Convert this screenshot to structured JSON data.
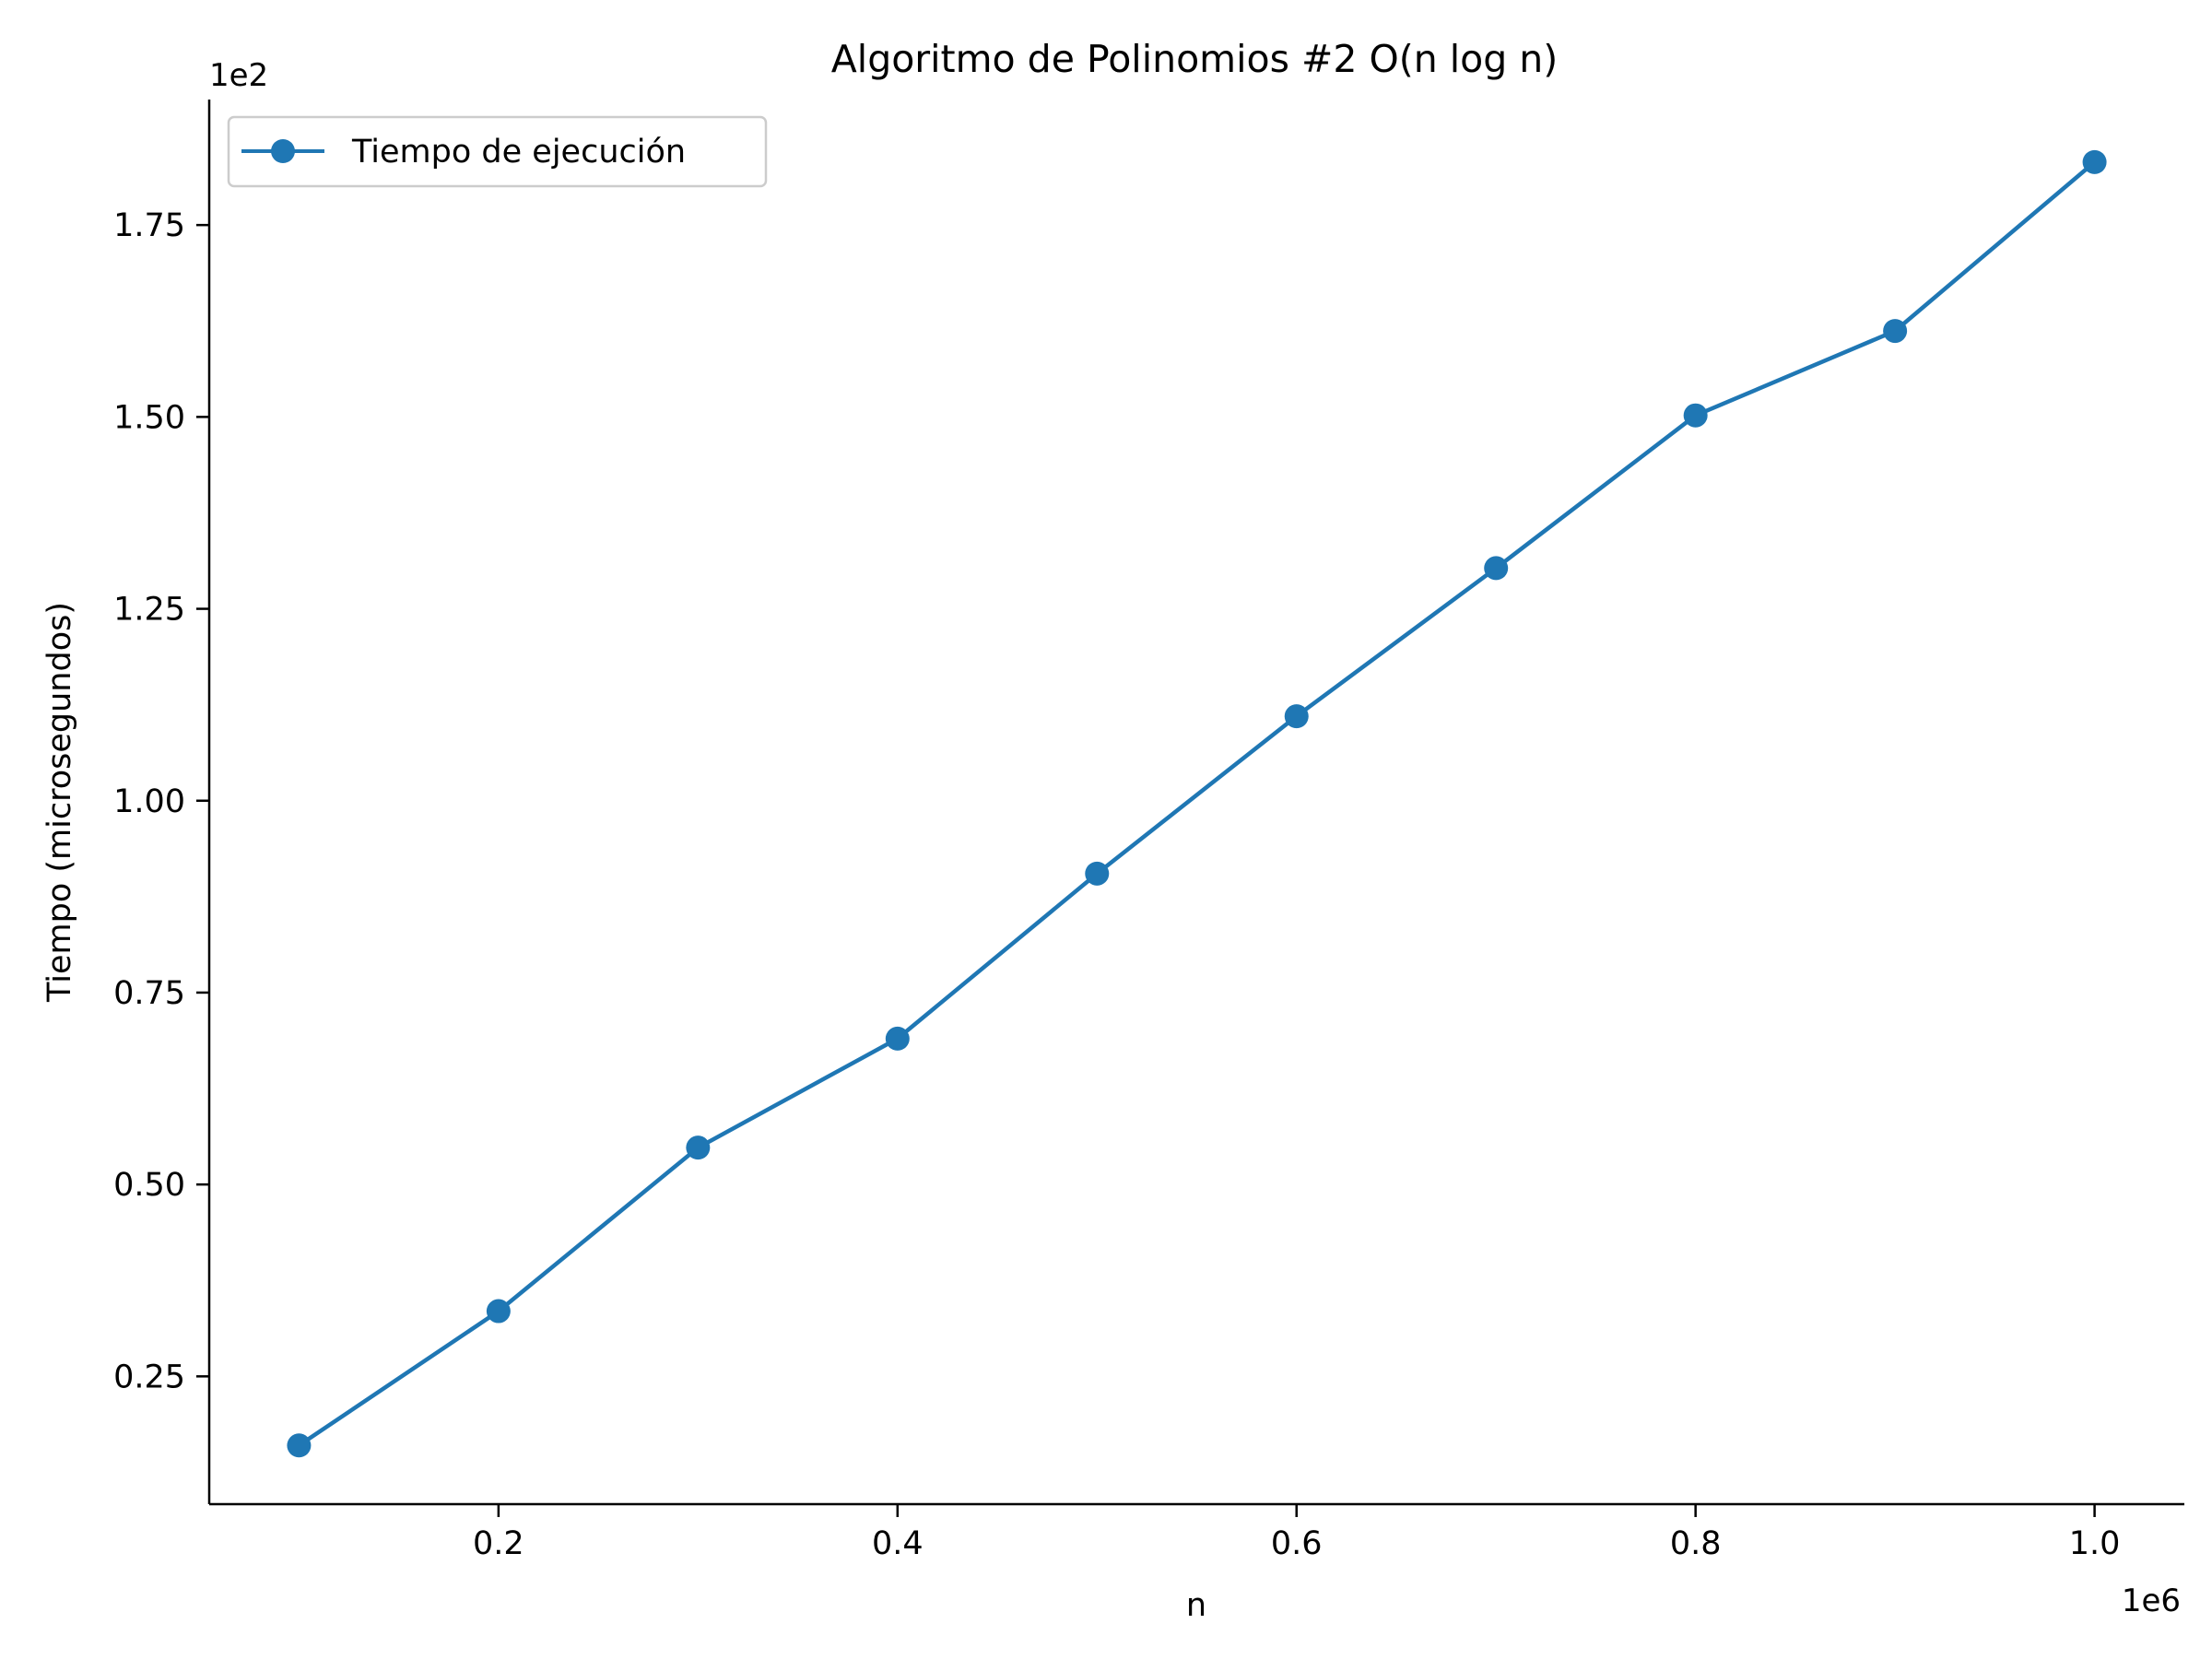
{
  "chart_data": {
    "type": "line",
    "title": "Algoritmo de Polinomios #2 O(n log n)",
    "xlabel": "n",
    "ylabel": "Tiempo (microsegundos)",
    "x_offset_label": "1e6",
    "y_offset_label": "1e2",
    "x_ticks": [
      0.2,
      0.4,
      0.6,
      0.8,
      1.0
    ],
    "x_tick_labels": [
      "0.2",
      "0.4",
      "0.6",
      "0.8",
      "1.0"
    ],
    "y_ticks": [
      0.25,
      0.5,
      0.75,
      1.0,
      1.25,
      1.5,
      1.75
    ],
    "y_tick_labels": [
      "0.25",
      "0.50",
      "0.75",
      "1.00",
      "1.25",
      "1.50",
      "1.75"
    ],
    "xlim": [
      0.055,
      1.045
    ],
    "ylim": [
      0.0835,
      1.9135
    ],
    "grid": false,
    "legend_position": "top-left",
    "series": [
      {
        "name": "Tiempo de ejecución",
        "color": "#1f77b4",
        "marker": "circle",
        "x": [
          0.1,
          0.2,
          0.3,
          0.4,
          0.5,
          0.6,
          0.7,
          0.8,
          0.9,
          1.0
        ],
        "y": [
          0.16,
          0.335,
          0.548,
          0.69,
          0.905,
          1.11,
          1.303,
          1.502,
          1.612,
          1.832
        ]
      }
    ]
  }
}
